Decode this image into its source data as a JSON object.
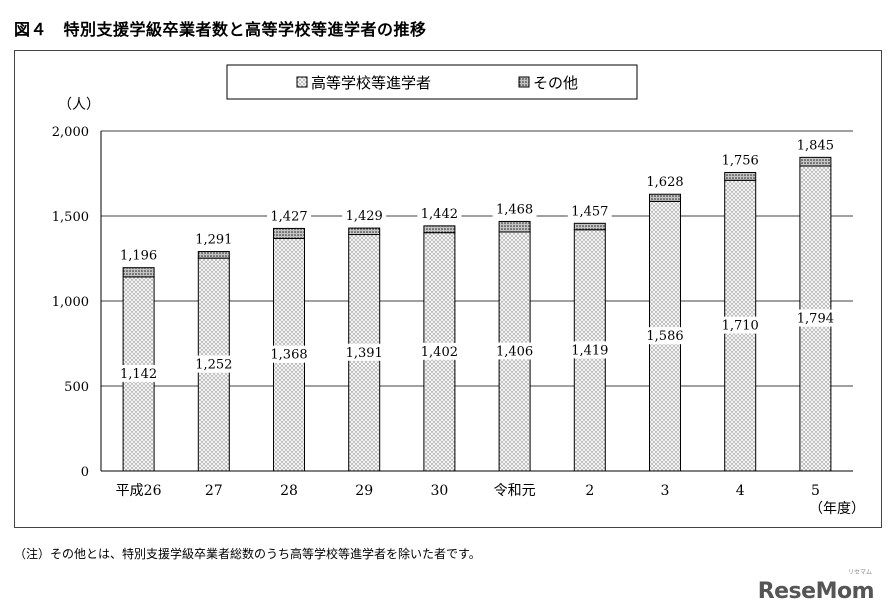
{
  "figure": {
    "title": "図４　特別支援学級卒業者数と高等学校等進学者の推移",
    "footnote": "（注）その他とは、特別支援学級卒業者総数のうち高等学校等進学者を除いた者です。",
    "brand": "ReseMom",
    "brand_sub": "リセマム"
  },
  "chart_data": {
    "type": "bar",
    "stacked": true,
    "categories": [
      "平成26",
      "27",
      "28",
      "29",
      "30",
      "令和元",
      "2",
      "3",
      "4",
      "5"
    ],
    "series": [
      {
        "name": "高等学校等進学者",
        "values": [
          1142,
          1252,
          1368,
          1391,
          1402,
          1406,
          1419,
          1586,
          1710,
          1794
        ],
        "pattern": "dots-light"
      },
      {
        "name": "その他",
        "values": [
          54,
          39,
          59,
          38,
          40,
          62,
          38,
          42,
          46,
          51
        ],
        "pattern": "dots-dense"
      }
    ],
    "totals": [
      1196,
      1291,
      1427,
      1429,
      1442,
      1468,
      1457,
      1628,
      1756,
      1845
    ],
    "y_tick_labels": [
      "0",
      "500",
      "1,000",
      "1,500",
      "2,000"
    ],
    "y_ticks": [
      0,
      500,
      1000,
      1500,
      2000
    ],
    "ylim": [
      0,
      2000
    ],
    "ylabel": "（人）",
    "xlabel": "（年度）",
    "grid": true,
    "legend_position": "top-center",
    "colors": {
      "bar_fill": "#f4f4f4",
      "dot": "#777777",
      "dense_fill": "#bdbdbd",
      "dense_dot": "#333333",
      "stroke": "#000000"
    }
  }
}
